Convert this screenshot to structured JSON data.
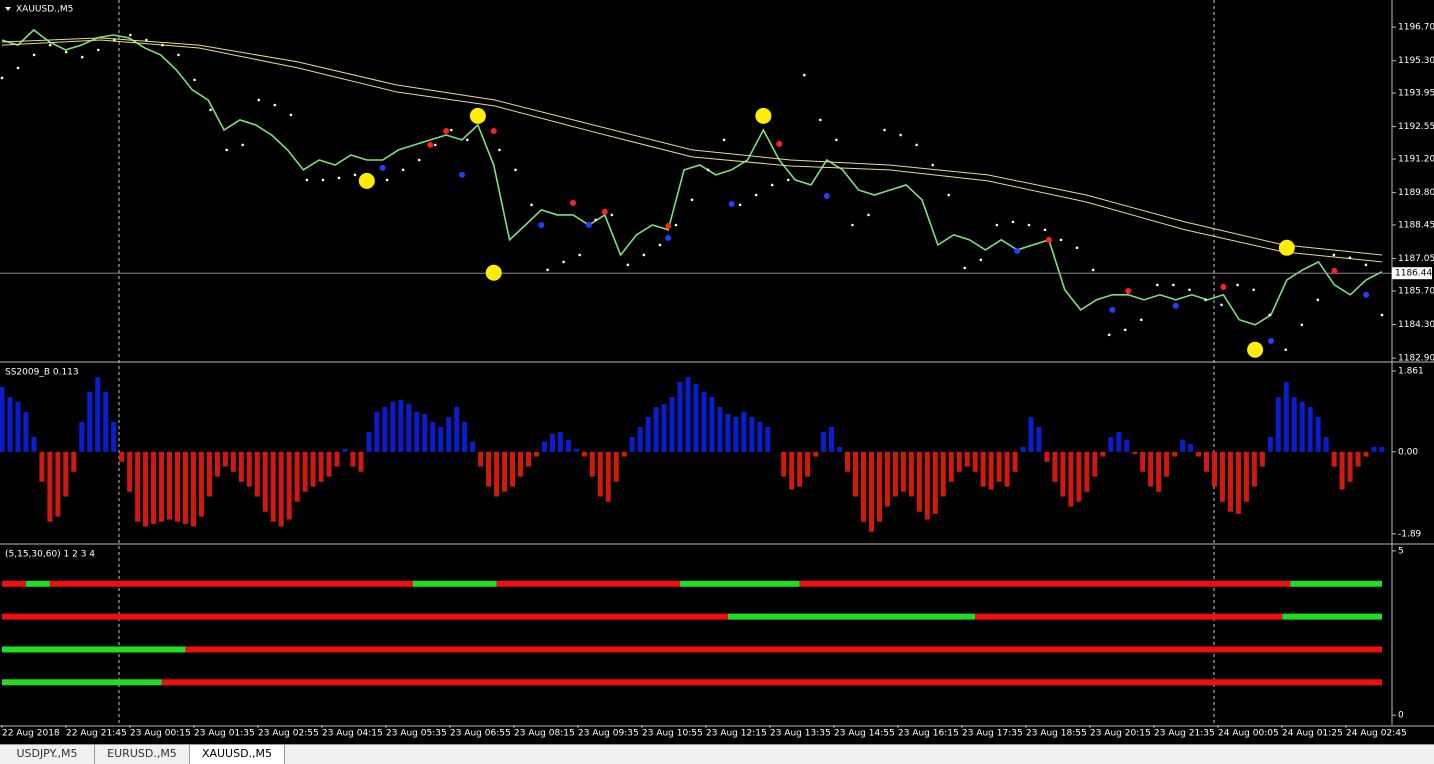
{
  "window": {
    "tabs": [
      "USDJPY.,M5",
      "EURUSD.,M5",
      "XAUUSD.,M5"
    ],
    "active_tab": 2,
    "time_labels": [
      "22 Aug 2018",
      "22 Aug 21:45",
      "23 Aug 00:15",
      "23 Aug 01:35",
      "23 Aug 02:55",
      "23 Aug 04:15",
      "23 Aug 05:35",
      "23 Aug 06:55",
      "23 Aug 08:15",
      "23 Aug 09:35",
      "23 Aug 10:55",
      "23 Aug 12:15",
      "23 Aug 13:35",
      "23 Aug 14:55",
      "23 Aug 16:15",
      "23 Aug 17:35",
      "23 Aug 18:55",
      "23 Aug 20:15",
      "23 Aug 21:35",
      "24 Aug 00:05",
      "24 Aug 01:25",
      "24 Aug 02:45"
    ]
  },
  "chart_data": [
    {
      "type": "line",
      "title": "XAUUSD.,M5",
      "ylim": [
        1182.78,
        1197.83
      ],
      "yticks": [
        {
          "value": 1196.7,
          "label": "1196.70"
        },
        {
          "value": 1195.3,
          "label": "1195.30"
        },
        1193.95,
        1192.55,
        {
          "value": 1191.2,
          "label": "1191.20"
        },
        {
          "value": 1189.8,
          "label": "1189.80"
        },
        1188.45,
        1187.05,
        {
          "value": 1185.7,
          "label": "1185.70"
        },
        {
          "value": 1184.3,
          "label": "1184.30"
        },
        {
          "value": 1182.9,
          "label": "1182.90"
        }
      ],
      "current_price": 1186.44,
      "series": [
        {
          "style": "line",
          "color": "#7ee07e",
          "values": [
            1196.16,
            1195.95,
            1196.58,
            1196.08,
            1195.75,
            1195.95,
            1196.25,
            1196.37,
            1196.25,
            1195.83,
            1195.54,
            1194.91,
            1194.08,
            1193.66,
            1192.41,
            1192.83,
            1192.62,
            1192.2,
            1191.58,
            1190.75,
            1191.16,
            1190.95,
            1191.37,
            1191.16,
            1191.16,
            1191.58,
            1191.79,
            1192.0,
            1192.2,
            1192.0,
            1192.62,
            1190.95,
            1187.83,
            1188.45,
            1189.08,
            1188.87,
            1188.87,
            1188.45,
            1188.87,
            1187.2,
            1188.04,
            1188.45,
            1188.25,
            1190.75,
            1190.95,
            1190.54,
            1190.75,
            1191.16,
            1192.41,
            1191.16,
            1190.33,
            1190.12,
            1191.16,
            1190.75,
            1189.91,
            1189.7,
            1189.91,
            1190.12,
            1189.5,
            1187.62,
            1188.04,
            1187.83,
            1187.41,
            1187.83,
            1187.41,
            1187.62,
            1187.83,
            1185.75,
            1184.91,
            1185.33,
            1185.54,
            1185.54,
            1185.33,
            1185.54,
            1185.33,
            1185.54,
            1185.33,
            1185.54,
            1184.5,
            1184.29,
            1184.7,
            1186.16,
            1186.58,
            1186.91,
            1185.95,
            1185.54,
            1186.16,
            1186.5
          ]
        },
        {
          "style": "line",
          "color": "#e6dc8c",
          "values": [
            1196.08,
            1196.25,
            1195.95,
            1195.25,
            1194.29,
            1193.66,
            1192.62,
            1191.58,
            1191.16,
            1190.95,
            1190.54,
            1189.7,
            1188.58,
            1187.62,
            1187.2
          ]
        },
        {
          "style": "line",
          "color": "#e6dc8c",
          "values": [
            1195.95,
            1196.16,
            1195.83,
            1195.0,
            1194.0,
            1193.41,
            1192.33,
            1191.29,
            1190.91,
            1190.75,
            1190.29,
            1189.41,
            1188.25,
            1187.33,
            1186.91
          ]
        },
        {
          "style": "dots",
          "color": "#ffffff",
          "values": [
            1194.58,
            1195.0,
            1195.54,
            1195.95,
            1195.66,
            1195.45,
            1195.75,
            1196.16,
            1196.37,
            1196.16,
            1195.95,
            1195.54,
            1194.5,
            1193.25,
            1191.58,
            1191.79,
            1193.66,
            1193.45,
            1193.04,
            1190.33,
            1190.33,
            1190.41,
            1190.54,
            1190.25,
            1190.33,
            1190.75,
            1191.16,
            1191.79,
            1192.41,
            1192.0,
            1192.83,
            1191.58,
            1190.75,
            1189.29,
            1186.58,
            1186.91,
            1187.2,
            1188.66,
            1188.87,
            1186.79,
            1187.2,
            1187.62,
            1188.45,
            1189.5,
            1190.75,
            1192.0,
            1189.29,
            1189.7,
            1190.12,
            1190.33,
            1194.7,
            1192.83,
            1192.0,
            1188.45,
            1188.87,
            1192.41,
            1192.2,
            1191.79,
            1190.95,
            1189.7,
            1186.66,
            1187.0,
            1188.45,
            1188.58,
            1188.45,
            1188.25,
            1187.83,
            1187.5,
            1186.58,
            1183.87,
            1184.08,
            1184.5,
            1185.95,
            1185.95,
            1185.75,
            1185.33,
            1185.12,
            1185.95,
            1185.75,
            1184.7,
            1183.25,
            1184.29,
            1185.33,
            1187.2,
            1187.08,
            1186.79,
            1184.7
          ]
        }
      ],
      "markers": [
        {
          "color": "#ffee00",
          "size": 8,
          "x": [
            23,
            30,
            31,
            48,
            79,
            81
          ],
          "values": [
            1190.29,
            1193.0,
            1186.46,
            1193.0,
            1183.25,
            1187.5
          ]
        },
        {
          "color": "#ff2020",
          "size": 3,
          "x": [
            27,
            28,
            31,
            36,
            38,
            42,
            49,
            66,
            71,
            77,
            84
          ],
          "values": [
            1191.79,
            1192.37,
            1192.37,
            1189.37,
            1189.0,
            1188.41,
            1191.83,
            1187.83,
            1185.7,
            1185.87,
            1186.54
          ]
        },
        {
          "color": "#2040ff",
          "size": 3,
          "x": [
            24,
            29,
            34,
            37,
            42,
            46,
            52,
            64,
            70,
            74,
            80,
            86
          ],
          "values": [
            1190.83,
            1190.54,
            1188.45,
            1188.45,
            1187.91,
            1189.33,
            1189.66,
            1187.37,
            1184.91,
            1185.08,
            1183.62,
            1185.54
          ]
        }
      ]
    },
    {
      "type": "bar",
      "title": "SS2009_B 0.113",
      "ylim": [
        -2.1,
        2.045
      ],
      "yticks": [
        1.861,
        {
          "value": 0,
          "label": "0.00"
        },
        -1.89
      ],
      "up_color": "#0a1ecf",
      "down_color": "#d01a10",
      "values": [
        1.49,
        1.26,
        1.15,
        0.92,
        0.34,
        -0.69,
        -1.61,
        -1.49,
        -1.03,
        -0.46,
        0.69,
        1.38,
        1.72,
        1.38,
        0.69,
        -0.23,
        -0.92,
        -1.61,
        -1.72,
        -1.66,
        -1.61,
        -1.56,
        -1.61,
        -1.66,
        -1.72,
        -1.49,
        -1.03,
        -0.57,
        -0.34,
        -0.46,
        -0.69,
        -0.8,
        -1.03,
        -1.38,
        -1.61,
        -1.72,
        -1.56,
        -1.15,
        -0.92,
        -0.8,
        -0.69,
        -0.57,
        -0.34,
        0.07,
        -0.34,
        -0.46,
        0.46,
        0.92,
        1.03,
        1.15,
        1.2,
        1.1,
        0.92,
        0.87,
        0.69,
        0.57,
        0.8,
        1.03,
        0.69,
        0.23,
        -0.34,
        -0.8,
        -1.03,
        -0.92,
        -0.8,
        -0.57,
        -0.34,
        -0.11,
        0.23,
        0.41,
        0.46,
        0.28,
        0.07,
        -0.11,
        -0.57,
        -1.03,
        -1.15,
        -0.69,
        -0.11,
        0.34,
        0.57,
        0.8,
        1.03,
        1.1,
        1.26,
        1.61,
        1.72,
        1.56,
        1.38,
        1.26,
        1.03,
        0.87,
        0.8,
        0.92,
        0.8,
        0.69,
        0.57,
        0,
        -0.57,
        -0.87,
        -0.8,
        -0.57,
        -0.11,
        0.46,
        0.57,
        0.11,
        -0.46,
        -1.03,
        -1.61,
        -1.84,
        -1.61,
        -1.26,
        -1.03,
        -0.92,
        -1.03,
        -1.38,
        -1.56,
        -1.43,
        -1.03,
        -0.69,
        -0.46,
        -0.34,
        -0.46,
        -0.8,
        -0.87,
        -0.69,
        -0.8,
        -0.46,
        0.11,
        0.8,
        0.57,
        -0.23,
        -0.69,
        -1.03,
        -1.26,
        -1.15,
        -0.92,
        -0.57,
        -0.11,
        0.34,
        0.46,
        0.28,
        -0.05,
        -0.46,
        -0.8,
        -0.92,
        -0.57,
        -0.11,
        0.28,
        0.18,
        -0.11,
        -0.46,
        -0.8,
        -1.15,
        -1.38,
        -1.43,
        -1.15,
        -0.8,
        -0.34,
        0.34,
        1.26,
        1.61,
        1.26,
        1.15,
        1.03,
        0.8,
        0.34,
        -0.34,
        -0.87,
        -0.69,
        -0.34,
        -0.11,
        0.11,
        0.11
      ]
    },
    {
      "type": "signal",
      "title": "(5,15,30,60) 1 2 3 4",
      "ylim": [
        -0.3,
        5.18
      ],
      "yticks": [
        5,
        0
      ],
      "rows": [
        {
          "value": 4,
          "segments": [
            {
              "color": "#ee1010",
              "bars": 6
            },
            {
              "color": "#22dd22",
              "bars": 6
            },
            {
              "color": "#ee1010",
              "bars": 91
            },
            {
              "color": "#22dd22",
              "bars": 21
            },
            {
              "color": "#ee1010",
              "bars": 46
            },
            {
              "color": "#22dd22",
              "bars": 30
            },
            {
              "color": "#ee1010",
              "bars": 123
            },
            {
              "color": "#22dd22",
              "bars": 23
            }
          ]
        },
        {
          "value": 3,
          "segments": [
            {
              "color": "#ee1010",
              "bars": 182
            },
            {
              "color": "#22dd22",
              "bars": 62
            },
            {
              "color": "#ee1010",
              "bars": 77
            },
            {
              "color": "#22dd22",
              "bars": 25
            }
          ]
        },
        {
          "value": 2,
          "segments": [
            {
              "color": "#22dd22",
              "bars": 46
            },
            {
              "color": "#ee1010",
              "bars": 300
            }
          ]
        },
        {
          "value": 1,
          "segments": [
            {
              "color": "#22dd22",
              "bars": 40
            },
            {
              "color": "#ee1010",
              "bars": 306
            }
          ]
        }
      ]
    }
  ]
}
